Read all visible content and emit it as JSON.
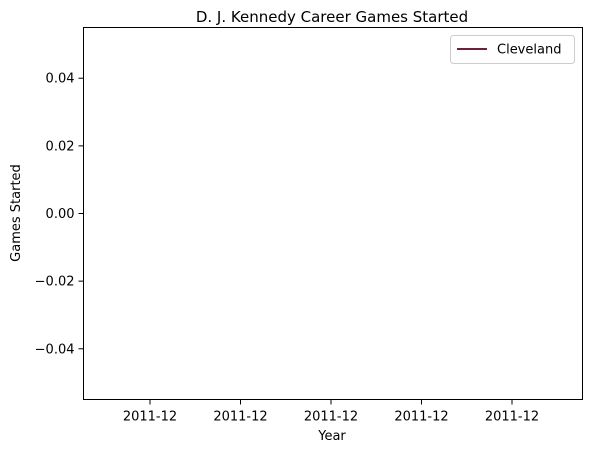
{
  "chart_data": {
    "type": "line",
    "title": "D. J. Kennedy Career Games Started",
    "xlabel": "Year",
    "ylabel": "Games Started",
    "x_tick_labels": [
      "2011-12",
      "2011-12",
      "2011-12",
      "2011-12",
      "2011-12"
    ],
    "y_ticks": [
      0.04,
      0.02,
      0.0,
      -0.02,
      -0.04
    ],
    "y_tick_labels": [
      "0.04",
      "0.02",
      "0.00",
      "−0.02",
      "−0.04"
    ],
    "ylim": [
      -0.055,
      0.055
    ],
    "grid": false,
    "legend_position": "top-right",
    "series": [
      {
        "name": "Cleveland",
        "color": "#6b2136",
        "x": [
          "2011-12"
        ],
        "values": [
          0
        ]
      }
    ]
  }
}
